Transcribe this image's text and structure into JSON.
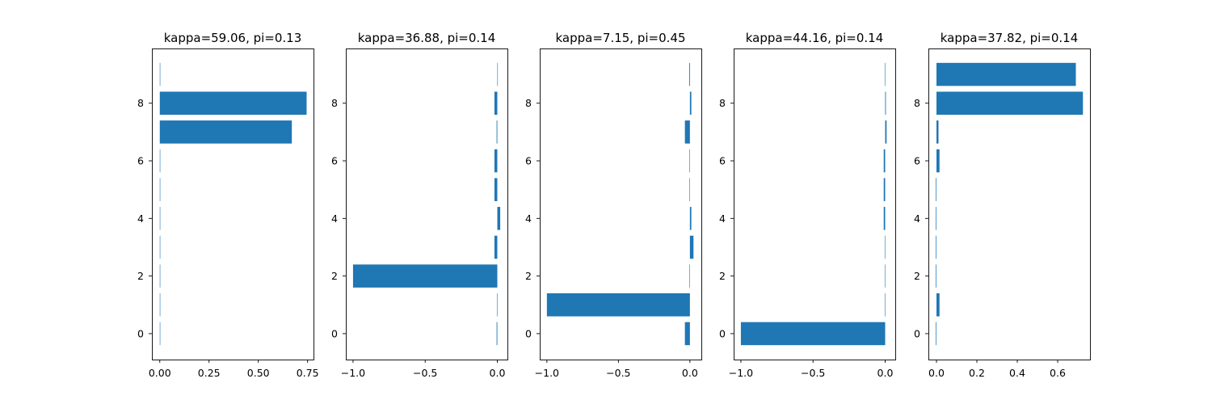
{
  "chart_data": [
    {
      "type": "bar",
      "orientation": "horizontal",
      "title": "kappa=59.06, pi=0.13",
      "xlabel": "",
      "ylabel": "",
      "categories": [
        0,
        1,
        2,
        3,
        4,
        5,
        6,
        7,
        8,
        9
      ],
      "values": [
        0.002,
        0.002,
        0.002,
        0.0,
        0.0,
        0.0,
        0.002,
        0.67,
        0.745,
        0.0
      ],
      "xlim": [
        -0.04,
        0.78
      ],
      "ylim": [
        -0.9,
        9.9
      ],
      "xticks": [
        "0.00",
        "0.25",
        "0.50",
        "0.75"
      ],
      "yticks": [
        "0",
        "2",
        "4",
        "6",
        "8"
      ],
      "color": "#1f77b4",
      "grid": false
    },
    {
      "type": "bar",
      "orientation": "horizontal",
      "title": "kappa=36.88, pi=0.14",
      "xlabel": "",
      "ylabel": "",
      "categories": [
        0,
        1,
        2,
        3,
        4,
        5,
        6,
        7,
        8,
        9
      ],
      "values": [
        -0.005,
        -0.003,
        -1.0,
        -0.02,
        0.02,
        -0.02,
        -0.02,
        -0.005,
        -0.02,
        0.0
      ],
      "xlim": [
        -1.05,
        0.07
      ],
      "ylim": [
        -0.9,
        9.9
      ],
      "xticks": [
        "−1.0",
        "−0.5",
        "0.0"
      ],
      "yticks": [
        "0",
        "2",
        "4",
        "6",
        "8"
      ],
      "color": "#1f77b4",
      "grid": false
    },
    {
      "type": "bar",
      "orientation": "horizontal",
      "title": "kappa=7.15, pi=0.45",
      "xlabel": "",
      "ylabel": "",
      "categories": [
        0,
        1,
        2,
        3,
        4,
        5,
        6,
        7,
        8,
        9
      ],
      "values": [
        -0.035,
        -1.0,
        -0.003,
        0.025,
        0.01,
        -0.003,
        -0.003,
        -0.035,
        0.01,
        -0.005
      ],
      "xlim": [
        -1.05,
        0.08
      ],
      "ylim": [
        -0.9,
        9.9
      ],
      "xticks": [
        "−1.0",
        "−0.5",
        "0.0"
      ],
      "yticks": [
        "0",
        "2",
        "4",
        "6",
        "8"
      ],
      "color": "#1f77b4",
      "grid": false
    },
    {
      "type": "bar",
      "orientation": "horizontal",
      "title": "kappa=44.16, pi=0.14",
      "xlabel": "",
      "ylabel": "",
      "categories": [
        0,
        1,
        2,
        3,
        4,
        5,
        6,
        7,
        8,
        9
      ],
      "values": [
        -1.0,
        -0.003,
        -0.003,
        -0.003,
        -0.01,
        -0.01,
        -0.01,
        0.01,
        0.005,
        -0.003
      ],
      "xlim": [
        -1.05,
        0.07
      ],
      "ylim": [
        -0.9,
        9.9
      ],
      "xticks": [
        "−1.0",
        "−0.5",
        "0.0"
      ],
      "yticks": [
        "0",
        "2",
        "4",
        "6",
        "8"
      ],
      "color": "#1f77b4",
      "grid": false
    },
    {
      "type": "bar",
      "orientation": "horizontal",
      "title": "kappa=37.82, pi=0.14",
      "xlabel": "",
      "ylabel": "",
      "categories": [
        0,
        1,
        2,
        3,
        4,
        5,
        6,
        7,
        8,
        9
      ],
      "values": [
        -0.003,
        0.015,
        -0.003,
        -0.003,
        -0.003,
        -0.003,
        0.015,
        0.01,
        0.725,
        0.69
      ],
      "xlim": [
        -0.04,
        0.76
      ],
      "ylim": [
        -0.9,
        9.9
      ],
      "xticks": [
        "0.0",
        "0.2",
        "0.4",
        "0.6"
      ],
      "yticks": [
        "0",
        "2",
        "4",
        "6",
        "8"
      ],
      "color": "#1f77b4",
      "grid": false
    }
  ]
}
